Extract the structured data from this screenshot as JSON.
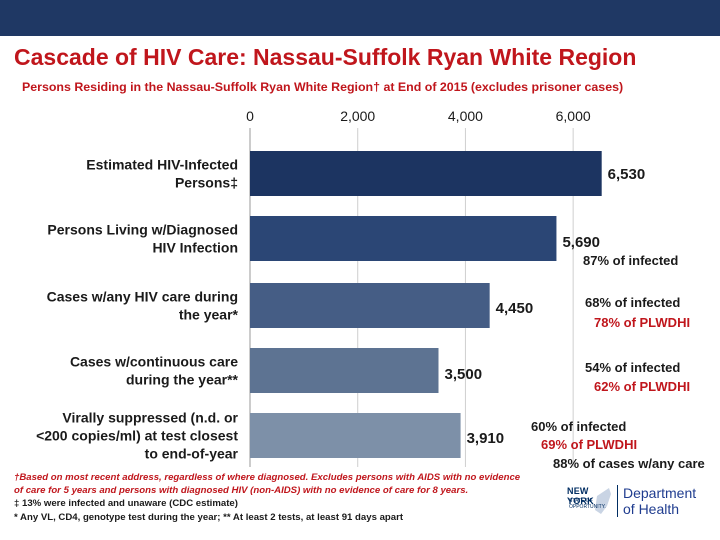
{
  "header": {
    "title": "Cascade of HIV Care: Nassau-Suffolk Ryan White Region",
    "subtitle": "Persons Residing in the Nassau-Suffolk Ryan White Region† at End of 2015 (excludes prisoner cases)"
  },
  "colors": {
    "title_red": "#c0161c",
    "top_bar": "#1f3864"
  },
  "chart_data": {
    "type": "bar",
    "orientation": "horizontal",
    "title": "Cascade of HIV Care: Nassau-Suffolk Ryan White Region",
    "xlim": [
      0,
      7000
    ],
    "xticks": [
      0,
      2000,
      4000,
      6000
    ],
    "xtick_labels": [
      "0",
      "2,000",
      "4,000",
      "6,000"
    ],
    "categories": [
      [
        "Estimated HIV-Infected",
        "Persons‡"
      ],
      [
        "Persons Living w/Diagnosed",
        "HIV Infection"
      ],
      [
        "Cases w/any HIV care during",
        "the year*"
      ],
      [
        "Cases w/continuous care",
        "during the year**"
      ],
      [
        "Virally suppressed (n.d. or",
        "<200 copies/ml) at test closest",
        "to end-of-year"
      ]
    ],
    "values": [
      6530,
      5690,
      4450,
      3500,
      3910
    ],
    "value_labels": [
      "6,530",
      "5,690",
      "4,450",
      "3,500",
      "3,910"
    ],
    "bar_colors": [
      "#1c3461",
      "#2b4675",
      "#455d85",
      "#5d7392",
      "#7d90a8"
    ],
    "annotations": [
      [],
      [
        {
          "text": "87% of infected",
          "color": "#1a1a1a"
        }
      ],
      [
        {
          "text": "68% of infected",
          "color": "#1a1a1a"
        },
        {
          "text": "78% of PLWDHI",
          "color": "#c0161c"
        }
      ],
      [
        {
          "text": "54% of infected",
          "color": "#1a1a1a"
        },
        {
          "text": "62% of PLWDHI",
          "color": "#c0161c"
        }
      ],
      [
        {
          "text": "60% of infected",
          "color": "#1a1a1a"
        },
        {
          "text": "69% of PLWDHI",
          "color": "#c0161c"
        },
        {
          "text": "88% of cases w/any care",
          "color": "#1a1a1a"
        }
      ]
    ]
  },
  "footnotes": {
    "line1": "†Based on most recent address, regardless of where diagnosed. Excludes persons with AIDS with no evidence",
    "line2": "of care for 5 years and persons with diagnosed HIV (non-AIDS) with no evidence of care for 8 years.",
    "line3": "‡ 13% were infected and unaware (CDC estimate)",
    "line4": "* Any VL, CD4, genotype test during the year; ** At least 2 tests, at least 91 days apart"
  },
  "logo": {
    "state": "NEW YORK",
    "state_sub": [
      "STATE OF",
      "OPPORTUNITY."
    ],
    "department_line1": "Department",
    "department_line2": "of Health"
  }
}
